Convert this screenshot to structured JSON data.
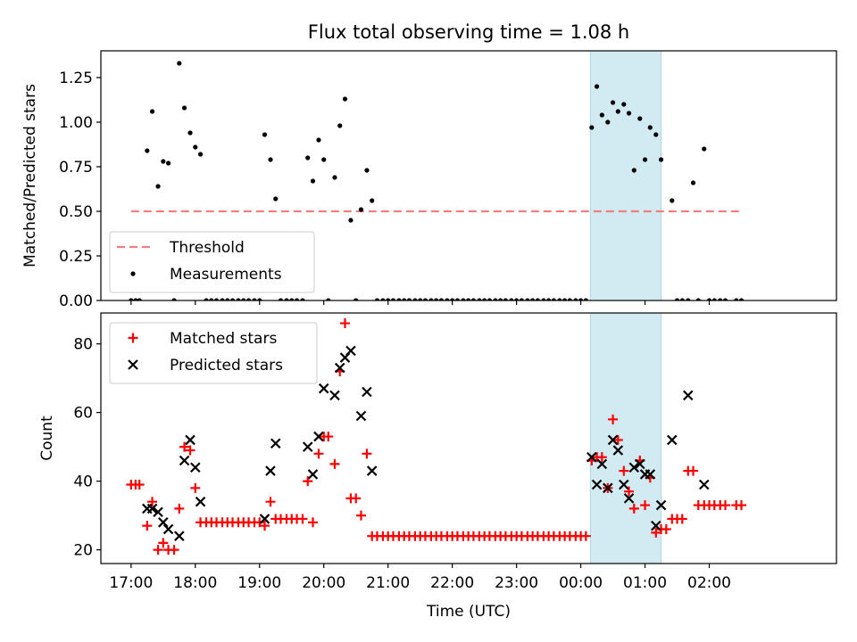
{
  "figure": {
    "title": "Flux total observing time = 1.08 h",
    "xlabel": "Time (UTC)",
    "x_tick_labels": [
      "17:00",
      "18:00",
      "19:00",
      "20:00",
      "21:00",
      "22:00",
      "23:00",
      "00:00",
      "01:00",
      "02:00"
    ]
  },
  "chart_data": [
    {
      "type": "scatter",
      "panel": "top",
      "ylabel": "Matched/Predicted stars",
      "ylim": [
        0,
        1.4
      ],
      "y_tick_labels": [
        "0.00",
        "0.25",
        "0.50",
        "0.75",
        "1.00",
        "1.25"
      ],
      "x_unit": "hours since 17:00 UTC",
      "xlim": [
        -0.47,
        10.98
      ],
      "highlight_span": {
        "x0": 7.15,
        "x1": 8.25,
        "color": "#add8e6"
      },
      "legend": {
        "location": "lower-left",
        "entries": [
          "Threshold",
          "Measurements"
        ]
      },
      "series": [
        {
          "name": "Threshold",
          "kind": "dashed-line",
          "color": "#f08080",
          "x": [
            0.0,
            9.5
          ],
          "y": [
            0.5,
            0.5
          ]
        },
        {
          "name": "Measurements",
          "kind": "dot",
          "color": "#000000",
          "points": [
            [
              0.0,
              0
            ],
            [
              0.07,
              0
            ],
            [
              0.13,
              0
            ],
            [
              0.25,
              0.84
            ],
            [
              0.33,
              1.06
            ],
            [
              0.42,
              0.64
            ],
            [
              0.5,
              0.78
            ],
            [
              0.58,
              0.77
            ],
            [
              0.67,
              0
            ],
            [
              0.75,
              1.33
            ],
            [
              0.83,
              1.08
            ],
            [
              0.92,
              0.94
            ],
            [
              1.0,
              0.86
            ],
            [
              1.08,
              0.82
            ],
            [
              1.17,
              0
            ],
            [
              1.25,
              0
            ],
            [
              1.33,
              0
            ],
            [
              1.42,
              0
            ],
            [
              1.5,
              0
            ],
            [
              1.58,
              0
            ],
            [
              1.67,
              0
            ],
            [
              1.75,
              0
            ],
            [
              1.83,
              0
            ],
            [
              1.92,
              0
            ],
            [
              2.0,
              0
            ],
            [
              2.08,
              0.93
            ],
            [
              2.17,
              0.79
            ],
            [
              2.25,
              0.57
            ],
            [
              2.33,
              0
            ],
            [
              2.42,
              0
            ],
            [
              2.5,
              0
            ],
            [
              2.58,
              0
            ],
            [
              2.67,
              0
            ],
            [
              2.75,
              0.8
            ],
            [
              2.83,
              0.67
            ],
            [
              2.92,
              0.9
            ],
            [
              3.0,
              0.79
            ],
            [
              3.07,
              0
            ],
            [
              3.17,
              0.69
            ],
            [
              3.25,
              0.98
            ],
            [
              3.33,
              1.13
            ],
            [
              3.42,
              0.45
            ],
            [
              3.5,
              0
            ],
            [
              3.58,
              0.51
            ],
            [
              3.67,
              0.73
            ],
            [
              3.75,
              0.56
            ],
            [
              3.83,
              0
            ],
            [
              3.92,
              0
            ],
            [
              4.0,
              0
            ],
            [
              4.08,
              0
            ],
            [
              4.17,
              0
            ],
            [
              4.25,
              0
            ],
            [
              4.33,
              0
            ],
            [
              4.42,
              0
            ],
            [
              4.5,
              0
            ],
            [
              4.58,
              0
            ],
            [
              4.67,
              0
            ],
            [
              4.75,
              0
            ],
            [
              4.83,
              0
            ],
            [
              4.92,
              0
            ],
            [
              5.0,
              0
            ],
            [
              5.08,
              0
            ],
            [
              5.17,
              0
            ],
            [
              5.25,
              0
            ],
            [
              5.33,
              0
            ],
            [
              5.42,
              0
            ],
            [
              5.5,
              0
            ],
            [
              5.58,
              0
            ],
            [
              5.67,
              0
            ],
            [
              5.75,
              0
            ],
            [
              5.83,
              0
            ],
            [
              5.92,
              0
            ],
            [
              6.0,
              0
            ],
            [
              6.08,
              0
            ],
            [
              6.17,
              0
            ],
            [
              6.25,
              0
            ],
            [
              6.33,
              0
            ],
            [
              6.42,
              0
            ],
            [
              6.5,
              0
            ],
            [
              6.58,
              0
            ],
            [
              6.67,
              0
            ],
            [
              6.75,
              0
            ],
            [
              6.83,
              0
            ],
            [
              6.92,
              0
            ],
            [
              7.0,
              0
            ],
            [
              7.08,
              0
            ],
            [
              7.17,
              0.97
            ],
            [
              7.25,
              1.2
            ],
            [
              7.33,
              1.04
            ],
            [
              7.42,
              1.0
            ],
            [
              7.5,
              1.11
            ],
            [
              7.58,
              1.06
            ],
            [
              7.67,
              1.1
            ],
            [
              7.75,
              1.05
            ],
            [
              7.83,
              0.73
            ],
            [
              7.92,
              1.02
            ],
            [
              8.0,
              0.79
            ],
            [
              8.08,
              0.97
            ],
            [
              8.17,
              0.93
            ],
            [
              8.25,
              0.79
            ],
            [
              8.42,
              0.56
            ],
            [
              8.5,
              0
            ],
            [
              8.58,
              0
            ],
            [
              8.67,
              0
            ],
            [
              8.75,
              0.66
            ],
            [
              8.83,
              0
            ],
            [
              8.92,
              0.85
            ],
            [
              9.0,
              0
            ],
            [
              9.08,
              0
            ],
            [
              9.17,
              0
            ],
            [
              9.25,
              0
            ],
            [
              9.42,
              0
            ],
            [
              9.5,
              0
            ]
          ]
        }
      ]
    },
    {
      "type": "scatter",
      "panel": "bottom",
      "ylabel": "Count",
      "ylim": [
        16,
        89
      ],
      "y_tick_labels": [
        "20",
        "40",
        "60",
        "80"
      ],
      "x_unit": "hours since 17:00 UTC",
      "xlim": [
        -0.47,
        10.98
      ],
      "highlight_span": {
        "x0": 7.15,
        "x1": 8.25,
        "color": "#add8e6"
      },
      "legend": {
        "location": "top-left",
        "entries": [
          "Matched stars",
          "Predicted stars"
        ]
      },
      "series": [
        {
          "name": "Matched stars",
          "kind": "plus",
          "color": "#ff0000",
          "points": [
            [
              0.0,
              39
            ],
            [
              0.07,
              39
            ],
            [
              0.13,
              39
            ],
            [
              0.25,
              27
            ],
            [
              0.33,
              34
            ],
            [
              0.42,
              20
            ],
            [
              0.5,
              22
            ],
            [
              0.58,
              20
            ],
            [
              0.67,
              20
            ],
            [
              0.75,
              32
            ],
            [
              0.83,
              50
            ],
            [
              0.92,
              49
            ],
            [
              1.0,
              38
            ],
            [
              1.08,
              28
            ],
            [
              1.17,
              28
            ],
            [
              1.25,
              28
            ],
            [
              1.33,
              28
            ],
            [
              1.42,
              28
            ],
            [
              1.5,
              28
            ],
            [
              1.58,
              28
            ],
            [
              1.67,
              28
            ],
            [
              1.75,
              28
            ],
            [
              1.83,
              28
            ],
            [
              1.92,
              28
            ],
            [
              2.0,
              28
            ],
            [
              2.08,
              27
            ],
            [
              2.17,
              34
            ],
            [
              2.25,
              29
            ],
            [
              2.33,
              29
            ],
            [
              2.42,
              29
            ],
            [
              2.5,
              29
            ],
            [
              2.58,
              29
            ],
            [
              2.67,
              29
            ],
            [
              2.75,
              40
            ],
            [
              2.83,
              28
            ],
            [
              2.92,
              48
            ],
            [
              3.0,
              53
            ],
            [
              3.07,
              53
            ],
            [
              3.17,
              45
            ],
            [
              3.25,
              72
            ],
            [
              3.33,
              86
            ],
            [
              3.42,
              35
            ],
            [
              3.5,
              35
            ],
            [
              3.58,
              30
            ],
            [
              3.67,
              48
            ],
            [
              3.75,
              24
            ],
            [
              3.83,
              24
            ],
            [
              3.92,
              24
            ],
            [
              4.0,
              24
            ],
            [
              4.08,
              24
            ],
            [
              4.17,
              24
            ],
            [
              4.25,
              24
            ],
            [
              4.33,
              24
            ],
            [
              4.42,
              24
            ],
            [
              4.5,
              24
            ],
            [
              4.58,
              24
            ],
            [
              4.67,
              24
            ],
            [
              4.75,
              24
            ],
            [
              4.83,
              24
            ],
            [
              4.92,
              24
            ],
            [
              5.0,
              24
            ],
            [
              5.08,
              24
            ],
            [
              5.17,
              24
            ],
            [
              5.25,
              24
            ],
            [
              5.33,
              24
            ],
            [
              5.42,
              24
            ],
            [
              5.5,
              24
            ],
            [
              5.58,
              24
            ],
            [
              5.67,
              24
            ],
            [
              5.75,
              24
            ],
            [
              5.83,
              24
            ],
            [
              5.92,
              24
            ],
            [
              6.0,
              24
            ],
            [
              6.08,
              24
            ],
            [
              6.17,
              24
            ],
            [
              6.25,
              24
            ],
            [
              6.33,
              24
            ],
            [
              6.42,
              24
            ],
            [
              6.5,
              24
            ],
            [
              6.58,
              24
            ],
            [
              6.67,
              24
            ],
            [
              6.75,
              24
            ],
            [
              6.83,
              24
            ],
            [
              6.92,
              24
            ],
            [
              7.0,
              24
            ],
            [
              7.08,
              24
            ],
            [
              7.17,
              46
            ],
            [
              7.25,
              47
            ],
            [
              7.33,
              47
            ],
            [
              7.42,
              38
            ],
            [
              7.5,
              58
            ],
            [
              7.58,
              52
            ],
            [
              7.67,
              43
            ],
            [
              7.75,
              37
            ],
            [
              7.83,
              32
            ],
            [
              7.92,
              46
            ],
            [
              8.0,
              33
            ],
            [
              8.08,
              41
            ],
            [
              8.17,
              25
            ],
            [
              8.25,
              26
            ],
            [
              8.33,
              26
            ],
            [
              8.42,
              29
            ],
            [
              8.5,
              29
            ],
            [
              8.58,
              29
            ],
            [
              8.67,
              43
            ],
            [
              8.75,
              43
            ],
            [
              8.83,
              33
            ],
            [
              8.92,
              33
            ],
            [
              9.0,
              33
            ],
            [
              9.08,
              33
            ],
            [
              9.17,
              33
            ],
            [
              9.25,
              33
            ],
            [
              9.42,
              33
            ],
            [
              9.5,
              33
            ]
          ]
        },
        {
          "name": "Predicted stars",
          "kind": "x",
          "color": "#000000",
          "points": [
            [
              0.25,
              32
            ],
            [
              0.33,
              32
            ],
            [
              0.42,
              31
            ],
            [
              0.5,
              28
            ],
            [
              0.58,
              26
            ],
            [
              0.75,
              24
            ],
            [
              0.83,
              46
            ],
            [
              0.92,
              52
            ],
            [
              1.0,
              44
            ],
            [
              1.08,
              34
            ],
            [
              2.08,
              29
            ],
            [
              2.17,
              43
            ],
            [
              2.25,
              51
            ],
            [
              2.75,
              50
            ],
            [
              2.83,
              42
            ],
            [
              2.92,
              53
            ],
            [
              3.0,
              67
            ],
            [
              3.17,
              65
            ],
            [
              3.25,
              73
            ],
            [
              3.33,
              76
            ],
            [
              3.42,
              78
            ],
            [
              3.58,
              59
            ],
            [
              3.67,
              66
            ],
            [
              3.75,
              43
            ],
            [
              7.17,
              47
            ],
            [
              7.25,
              39
            ],
            [
              7.33,
              45
            ],
            [
              7.42,
              38
            ],
            [
              7.5,
              52
            ],
            [
              7.58,
              49
            ],
            [
              7.67,
              39
            ],
            [
              7.75,
              35
            ],
            [
              7.83,
              44
            ],
            [
              7.92,
              45
            ],
            [
              8.0,
              42
            ],
            [
              8.08,
              42
            ],
            [
              8.17,
              27
            ],
            [
              8.25,
              33
            ],
            [
              8.42,
              52
            ],
            [
              8.67,
              65
            ],
            [
              8.92,
              39
            ]
          ]
        }
      ]
    }
  ]
}
